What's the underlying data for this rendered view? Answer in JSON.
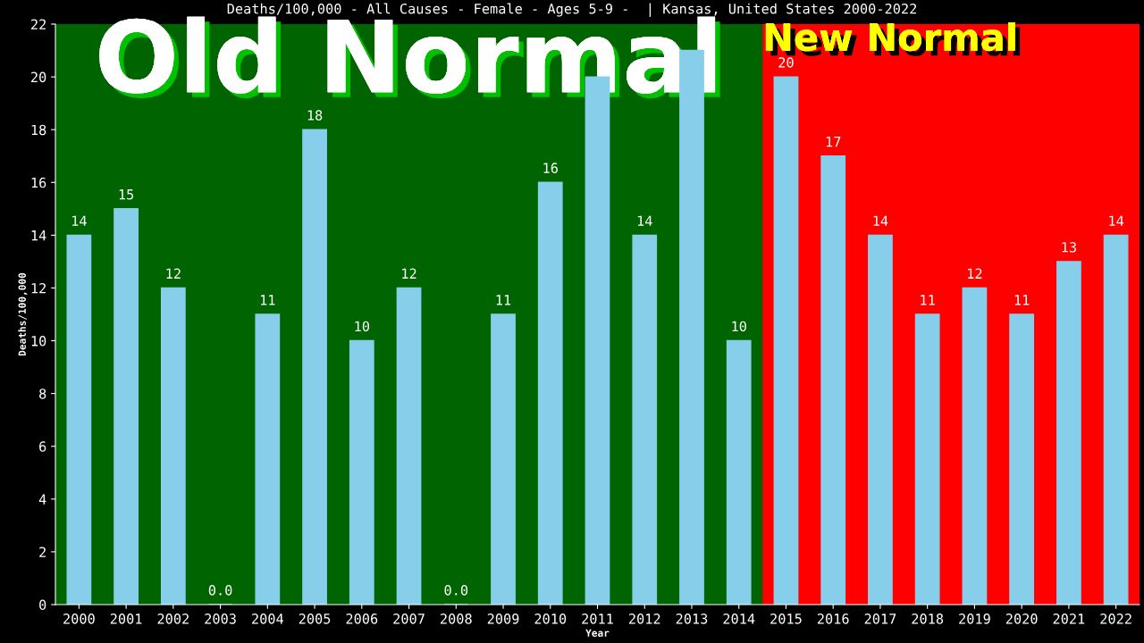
{
  "chart_data": {
    "type": "bar",
    "title": "Deaths/100,000 - All Causes - Female - Ages 5-9 -  | Kansas, United States 2000-2022",
    "xlabel": "Year",
    "ylabel": "Deaths/100,000",
    "categories": [
      "2000",
      "2001",
      "2002",
      "2003",
      "2004",
      "2005",
      "2006",
      "2007",
      "2008",
      "2009",
      "2010",
      "2011",
      "2012",
      "2013",
      "2014",
      "2015",
      "2016",
      "2017",
      "2018",
      "2019",
      "2020",
      "2021",
      "2022"
    ],
    "values": [
      14,
      15,
      12,
      0,
      11,
      18,
      10,
      12,
      0,
      11,
      16,
      20,
      14,
      21,
      10,
      20,
      17,
      14,
      11,
      12,
      11,
      13,
      14
    ],
    "value_labels": [
      "14",
      "15",
      "12",
      "0.0",
      "11",
      "18",
      "10",
      "12",
      "0.0",
      "11",
      "16",
      null,
      "14",
      null,
      "10",
      "20",
      "17",
      "14",
      "11",
      "12",
      "11",
      "13",
      "14"
    ],
    "color": "#87ceeb",
    "ylim": [
      0,
      22
    ],
    "yticks": [
      0,
      2,
      4,
      6,
      8,
      10,
      12,
      14,
      16,
      18,
      20,
      22
    ],
    "grid": false,
    "legend": false,
    "bands": [
      {
        "axis": "x",
        "from": "2000",
        "to": "2014",
        "label": "Old Normal",
        "color": "#006400"
      },
      {
        "axis": "x",
        "from": "2015",
        "to": "2022",
        "label": "New Normal",
        "color": "#ff0000"
      }
    ]
  }
}
